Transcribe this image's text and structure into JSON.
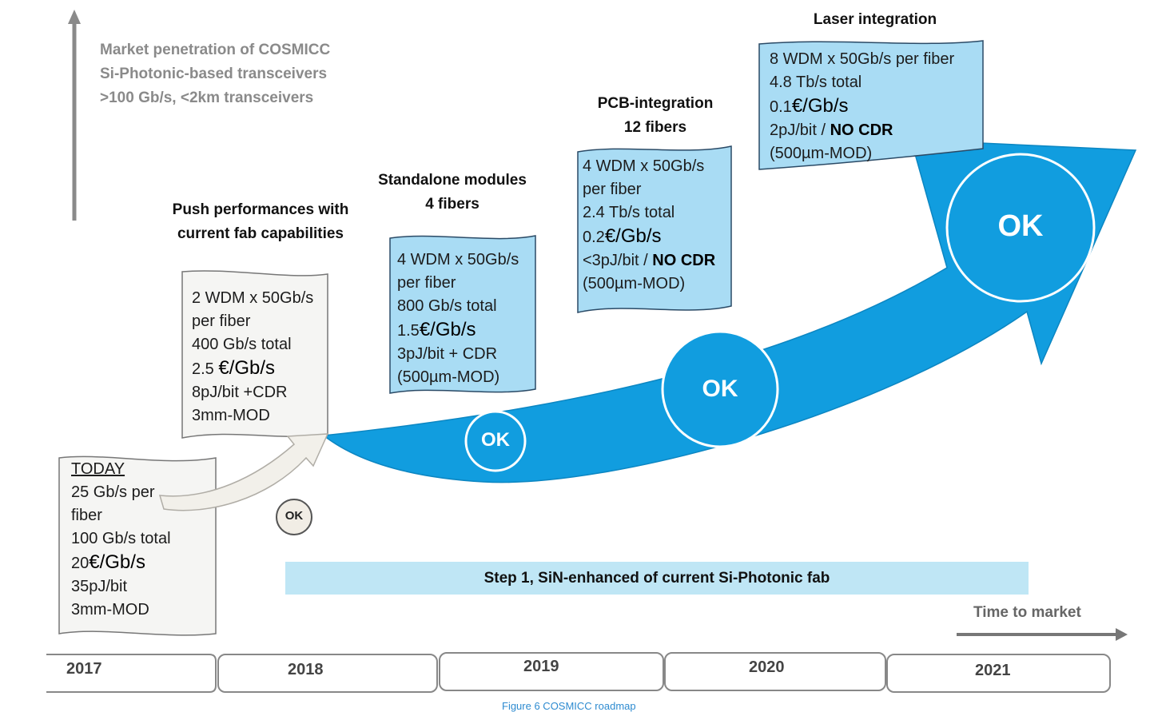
{
  "market_text": {
    "line1": "Market penetration of COSMICC",
    "line2": "Si-Photonic-based transceivers",
    "line3": ">100 Gb/s, <2km transceivers"
  },
  "stages": {
    "push": {
      "title1": "Push performances with",
      "title2": "current  fab capabilities"
    },
    "standalone": {
      "title1": "Standalone modules",
      "title2": "4 fibers"
    },
    "pcb": {
      "title1": "PCB-integration",
      "title2": "12 fibers"
    },
    "laser": {
      "title1": "Laser integration"
    }
  },
  "cards": {
    "today": {
      "heading": "TODAY",
      "line1": "25 Gb/s per",
      "line2": "fiber",
      "line3": "100 Gb/s total",
      "cost_num": "20",
      "cost_unit": "€/Gb/s",
      "line5": "35pJ/bit",
      "line6": "3mm-MOD"
    },
    "y2018": {
      "line1": "2 WDM x 50Gb/s",
      "line2": "per fiber",
      "line3": "400 Gb/s total",
      "cost_num": "2.5 ",
      "cost_unit": "€/Gb/s",
      "line5": "8pJ/bit +CDR",
      "line6": "3mm-MOD"
    },
    "y2019": {
      "line1": "4 WDM x 50Gb/s",
      "line2": "per fiber",
      "line3": "800 Gb/s total",
      "cost_num": "1.5",
      "cost_unit": "€/Gb/s",
      "line5": "3pJ/bit + CDR",
      "line6": "(500µm-MOD)"
    },
    "y2020": {
      "line1": "4 WDM x 50Gb/s",
      "line2": "per fiber",
      "line3": "2.4 Tb/s total",
      "cost_num": "0.2",
      "cost_unit": "€/Gb/s",
      "line5a": "<3pJ/bit / ",
      "line5b": "NO CDR",
      "line6": "(500µm-MOD)"
    },
    "y2021": {
      "line1": "8 WDM x 50Gb/s per fiber",
      "line2": "4.8 Tb/s total",
      "cost_num": "0.1",
      "cost_unit": "€/Gb/s",
      "line4a": "2pJ/bit / ",
      "line4b": "NO CDR",
      "line5": "(500µm-MOD)"
    }
  },
  "ok_label": "OK",
  "step_bar": "Step 1, SiN-enhanced of current Si-Photonic fab",
  "time_to_market": "Time to market",
  "years": [
    "2017",
    "2018",
    "2019",
    "2020",
    "2021"
  ],
  "caption": "Figure 6 COSMICC roadmap",
  "colors": {
    "arrow_blue": "#119ddf",
    "box_blue": "#a9dcf4",
    "step_bar": "#bfe6f5",
    "ok_small_bg": "#f1ede5"
  }
}
